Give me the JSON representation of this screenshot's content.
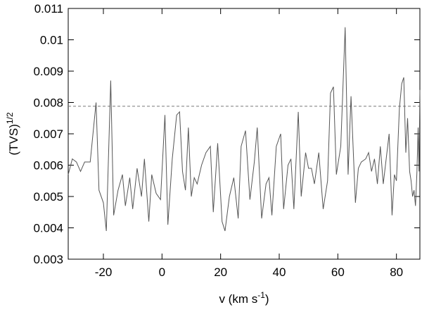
{
  "chart_data": {
    "type": "line",
    "xlabel": [
      "v (km s",
      "-1",
      ")"
    ],
    "ylabel": [
      "(TVS)",
      "1/2"
    ],
    "xlim": [
      -32,
      88
    ],
    "ylim": [
      0.003,
      0.011
    ],
    "xticks": [
      -20,
      0,
      20,
      40,
      60,
      80
    ],
    "yticks": [
      0.003,
      0.004,
      0.005,
      0.006,
      0.007,
      0.008,
      0.009,
      0.01,
      0.011
    ],
    "threshold": 0.00788,
    "color": "#555555",
    "x": [
      -32,
      -30.6,
      -29.2,
      -27.8,
      -26.4,
      -24.5,
      -22.5,
      -21.5,
      -20,
      -19,
      -17.5,
      -16.5,
      -15,
      -13.5,
      -12.5,
      -11,
      -10,
      -8.5,
      -7,
      -6,
      -4.5,
      -3.5,
      -2,
      -0.5,
      1,
      2,
      3.5,
      5,
      6,
      7,
      8,
      9,
      10,
      11,
      12,
      13.5,
      15,
      16.5,
      17.5,
      19,
      20.5,
      21.5,
      23,
      24.5,
      26,
      27,
      28.5,
      30,
      31.5,
      32.5,
      34,
      35.5,
      36.5,
      37.5,
      39,
      40.5,
      41.5,
      43,
      44,
      45,
      46.5,
      47.5,
      49,
      50,
      51,
      52,
      53.5,
      55,
      56.5,
      57.5,
      58.5,
      59.5,
      61,
      62.5,
      63.5,
      64.5,
      66,
      67,
      68,
      69.5,
      70.5,
      71.5,
      72.5,
      73.5,
      74.5,
      75.5,
      76.5,
      77.5,
      78.5,
      79.3,
      80,
      81,
      81.8,
      82.5,
      83.2,
      83.8,
      84.5,
      85,
      85.5,
      86,
      86.5,
      87,
      87.4,
      87.7,
      88
    ],
    "values": [
      0.0057,
      0.0062,
      0.0061,
      0.0058,
      0.0061,
      0.0061,
      0.008,
      0.0052,
      0.0048,
      0.0039,
      0.0087,
      0.0044,
      0.0052,
      0.0057,
      0.0047,
      0.0056,
      0.0046,
      0.0059,
      0.005,
      0.0062,
      0.0042,
      0.0057,
      0.0051,
      0.0049,
      0.0076,
      0.0041,
      0.0062,
      0.0076,
      0.0077,
      0.0058,
      0.0052,
      0.0072,
      0.005,
      0.0056,
      0.0054,
      0.006,
      0.0064,
      0.0066,
      0.0045,
      0.0067,
      0.0042,
      0.0039,
      0.005,
      0.0056,
      0.0043,
      0.0066,
      0.0071,
      0.0049,
      0.0061,
      0.0072,
      0.0043,
      0.0054,
      0.0056,
      0.0044,
      0.0066,
      0.007,
      0.0046,
      0.006,
      0.0062,
      0.0046,
      0.0077,
      0.005,
      0.0064,
      0.0059,
      0.0059,
      0.0054,
      0.0064,
      0.0046,
      0.0055,
      0.0083,
      0.0085,
      0.0057,
      0.0066,
      0.0104,
      0.0057,
      0.0082,
      0.0048,
      0.0059,
      0.0061,
      0.0062,
      0.0064,
      0.0058,
      0.0062,
      0.0054,
      0.0066,
      0.0054,
      0.0062,
      0.007,
      0.0044,
      0.0057,
      0.0055,
      0.0078,
      0.0086,
      0.0088,
      0.0064,
      0.0075,
      0.0058,
      0.0055,
      0.005,
      0.0052,
      0.0047,
      0.0058,
      0.0072,
      0.0058,
      0.0084
    ]
  }
}
